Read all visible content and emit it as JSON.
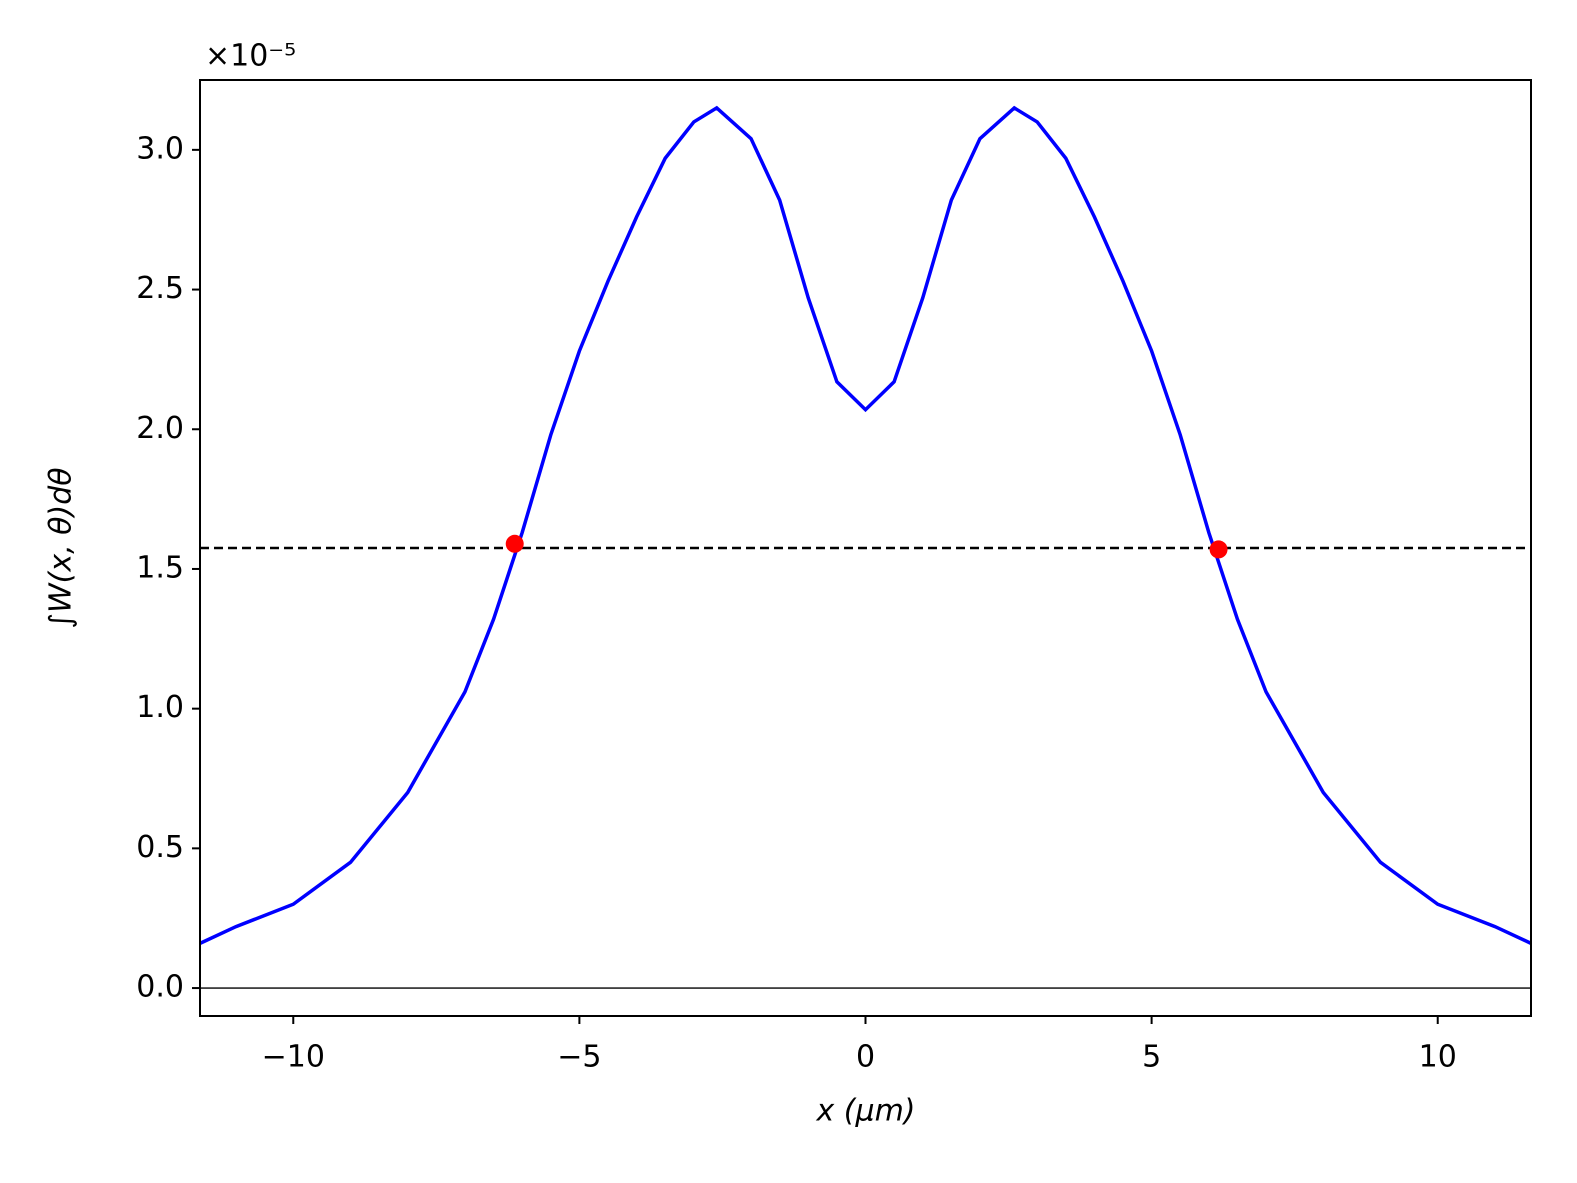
{
  "chart_data": {
    "type": "line",
    "xlabel": "x  (μm)",
    "ylabel": "∫W(x, θ)dθ",
    "y_offset_label": "×10⁻⁵",
    "x": [
      -11.63,
      -11,
      -10,
      -9,
      -8,
      -7,
      -6.5,
      -6,
      -5.5,
      -5,
      -4.5,
      -4,
      -3.5,
      -3,
      -2.6,
      -2,
      -1.5,
      -1,
      -0.5,
      0,
      0.5,
      1,
      1.5,
      2,
      2.6,
      3,
      3.5,
      4,
      4.5,
      5,
      5.5,
      6,
      6.5,
      7,
      8,
      9,
      10,
      11,
      11.63
    ],
    "series": [
      {
        "color": "#0000ff",
        "values": [
          0.16,
          0.22,
          0.3,
          0.45,
          0.7,
          1.06,
          1.32,
          1.63,
          1.98,
          2.28,
          2.53,
          2.76,
          2.97,
          3.1,
          3.15,
          3.04,
          2.82,
          2.47,
          2.17,
          2.07,
          2.17,
          2.47,
          2.82,
          3.04,
          3.15,
          3.1,
          2.97,
          2.76,
          2.53,
          2.28,
          1.98,
          1.63,
          1.32,
          1.06,
          0.7,
          0.45,
          0.3,
          0.22,
          0.16
        ]
      }
    ],
    "markers": {
      "color": "#ff0000",
      "x": [
        -6.13,
        6.17
      ],
      "values": [
        1.59,
        1.57
      ]
    },
    "hlines": [
      {
        "value": 1.575,
        "color": "#000000",
        "style": "dashed"
      },
      {
        "value": 0,
        "color": "#000000",
        "style": "solid"
      }
    ],
    "xlim": [
      -11.63,
      11.63
    ],
    "ylim": [
      -0.1,
      3.25
    ],
    "xticks": [
      {
        "value": -10,
        "label": "−10"
      },
      {
        "value": -5,
        "label": "−5"
      },
      0,
      5,
      10
    ],
    "yticks": [
      {
        "value": 0,
        "label": "0.0"
      },
      0.5,
      {
        "value": 1,
        "label": "1.0"
      },
      1.5,
      {
        "value": 2,
        "label": "2.0"
      },
      2.5,
      {
        "value": 3,
        "label": "3.0"
      }
    ]
  }
}
